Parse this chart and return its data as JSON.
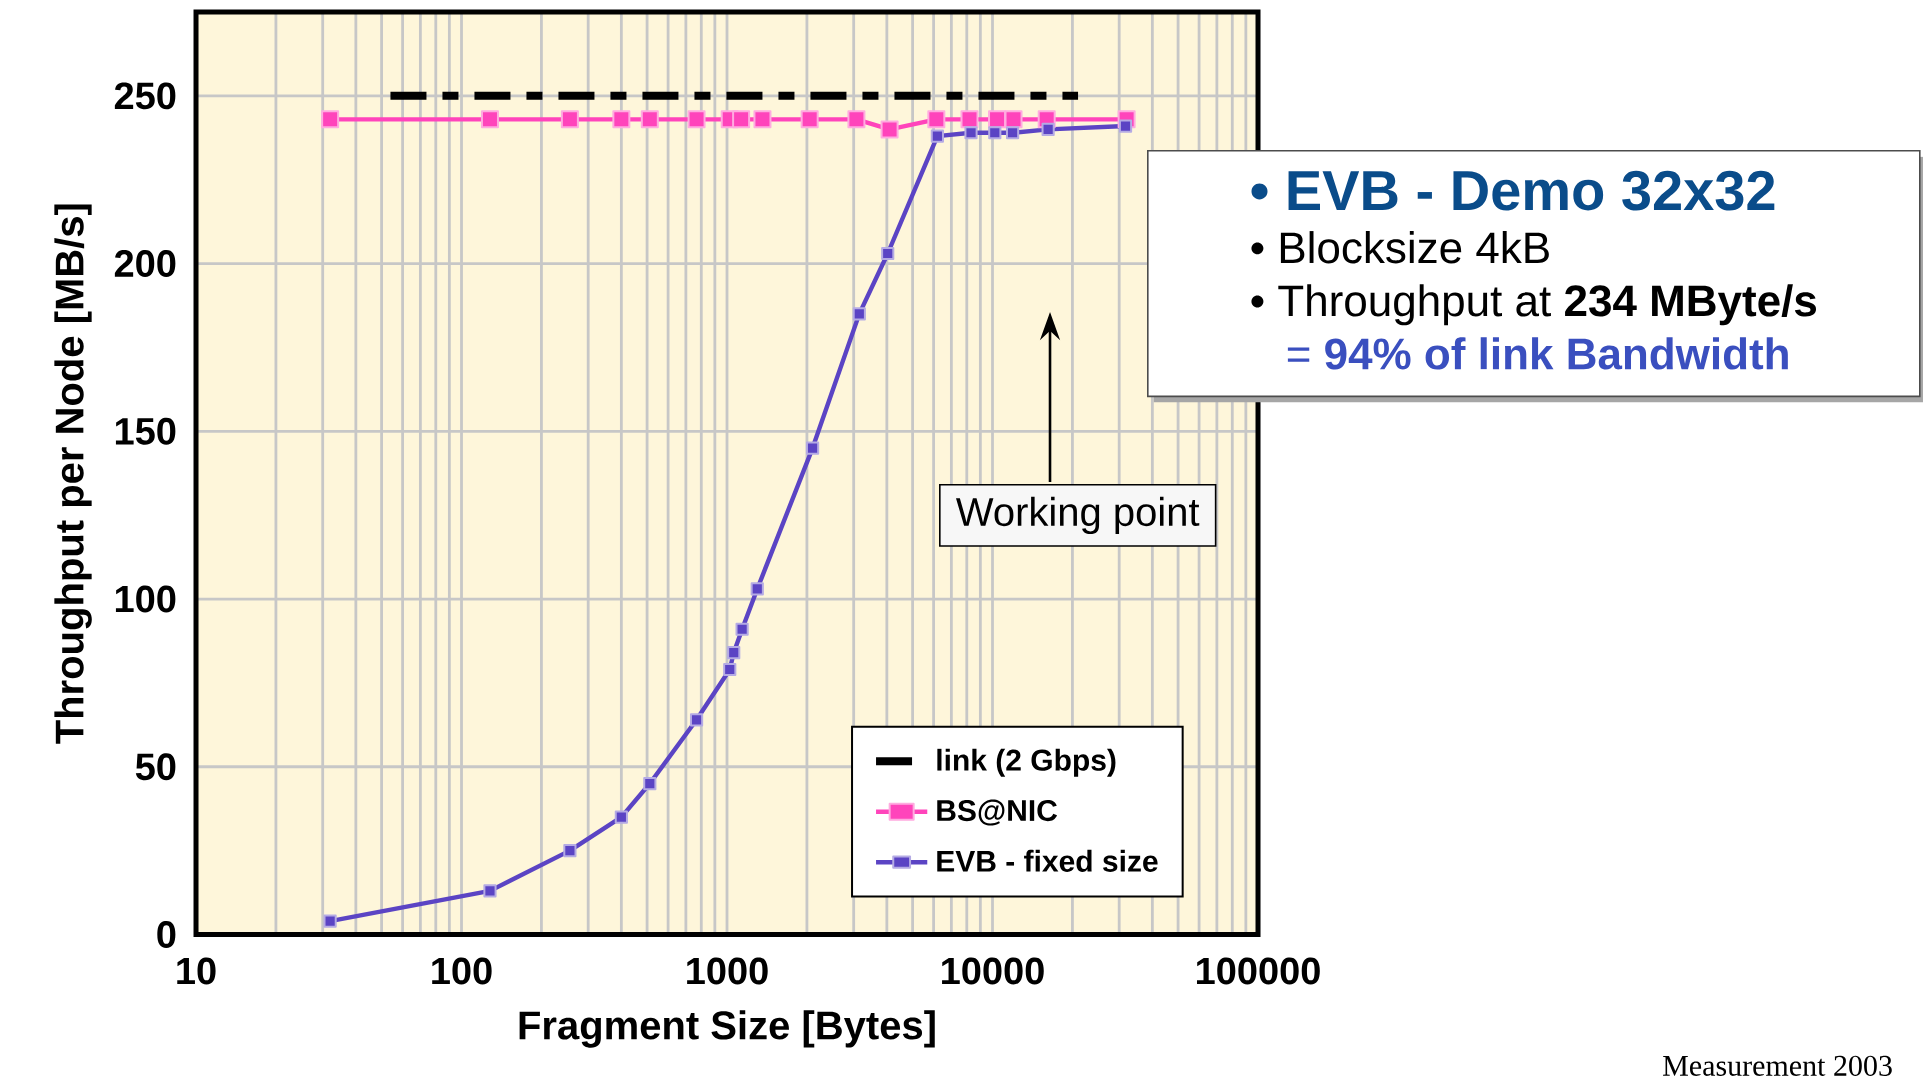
{
  "chart_data": {
    "type": "line",
    "xlabel": "Fragment Size [Bytes]",
    "ylabel": "Throughput per Node [MB/s]",
    "log": "x",
    "xlim": [
      10,
      100000
    ],
    "xticks": [
      10,
      100,
      1000,
      10000,
      100000
    ],
    "ylim": [
      0,
      275
    ],
    "yticks": [
      0,
      50,
      100,
      150,
      200,
      250
    ],
    "grid": true,
    "legend": "bottom right",
    "series": [
      {
        "name": "link (2 Gbps)",
        "color": "#000000",
        "line_style": "dashed",
        "marker": "none",
        "x": [
          54,
          21000
        ],
        "values": [
          250,
          250
        ]
      },
      {
        "name": "BS@NIC",
        "color": "#ff44bb",
        "marker": "square",
        "x": [
          32,
          128,
          256,
          400,
          512,
          768,
          1024,
          1130,
          1360,
          2048,
          3072,
          4096,
          6144,
          8192,
          10400,
          12000,
          16000,
          32000
        ],
        "values": [
          243,
          243,
          243,
          243,
          243,
          243,
          243,
          243,
          243,
          243,
          243,
          240,
          243,
          243,
          243,
          243,
          243,
          243
        ]
      },
      {
        "name": "EVB - fixed size",
        "color": "#5b44c4",
        "marker": "square",
        "x": [
          32,
          128,
          256,
          400,
          512,
          768,
          1024,
          1060,
          1140,
          1300,
          2100,
          3150,
          4030,
          6200,
          8300,
          10200,
          11900,
          16200,
          31700
        ],
        "values": [
          4,
          13,
          25,
          35,
          45,
          64,
          79,
          84,
          91,
          103,
          145,
          185,
          203,
          238,
          239,
          239,
          239,
          240,
          241
        ]
      }
    ],
    "annotations": [
      "• EVB - Demo 32x32",
      "• Blocksize 4kB",
      "• Throughput at **234 MByte/s**",
      "= **94% of link Bandwidth**",
      "Working point",
      "Measurement 2003"
    ]
  }
}
